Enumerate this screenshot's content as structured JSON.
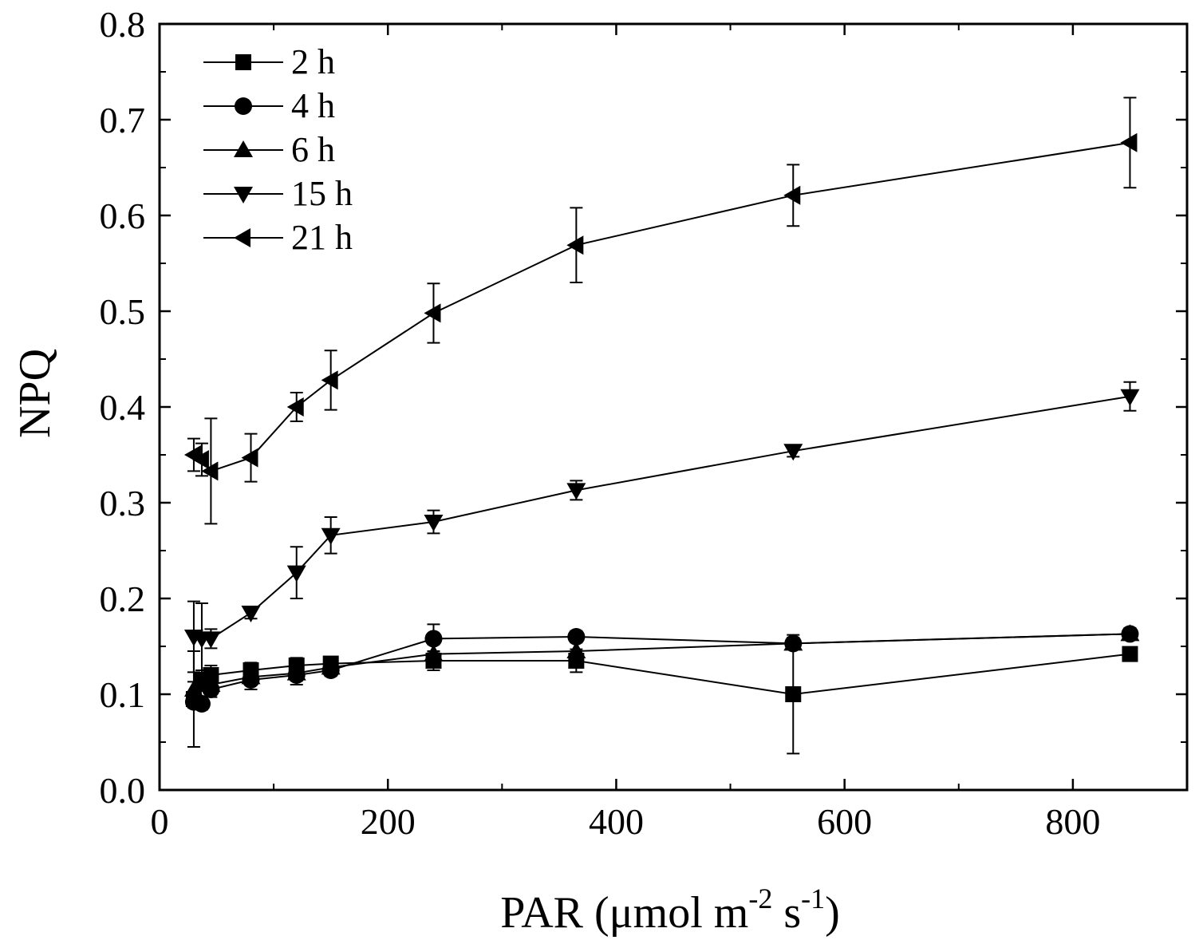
{
  "chart_data": {
    "type": "line",
    "title": "",
    "xlabel": "PAR (μmol m",
    "xlabel_sup1": "-2",
    "xlabel_mid": " s",
    "xlabel_sup2": "-1",
    "xlabel_end": ")",
    "ylabel": "NPQ",
    "xlim": [
      0,
      900
    ],
    "ylim": [
      0,
      0.8
    ],
    "xticks": [
      0,
      200,
      400,
      600,
      800
    ],
    "xtick_labels": [
      "0",
      "200",
      "400",
      "600",
      "800"
    ],
    "yticks": [
      0,
      0.1,
      0.2,
      0.3,
      0.4,
      0.5,
      0.6,
      0.7,
      0.8
    ],
    "ytick_labels": [
      "0.0",
      "0.1",
      "0.2",
      "0.3",
      "0.4",
      "0.5",
      "0.6",
      "0.7",
      "0.8"
    ],
    "legend_position": "top-left",
    "x": [
      30,
      37,
      45,
      80,
      120,
      150,
      240,
      365,
      555,
      850
    ],
    "series": [
      {
        "name": "2 h",
        "marker": "square",
        "values": [
          0.095,
          0.115,
          0.12,
          0.125,
          0.13,
          0.132,
          0.135,
          0.135,
          0.1,
          0.142
        ],
        "errors": [
          0.05,
          0.01,
          0.01,
          0.008,
          0.008,
          0.006,
          0.01,
          0.012,
          0.062,
          0.006
        ]
      },
      {
        "name": "4 h",
        "marker": "circle",
        "values": [
          0.092,
          0.09,
          0.105,
          0.115,
          0.12,
          0.125,
          0.158,
          0.16,
          0.153,
          0.163
        ],
        "errors": [
          0.006,
          0.006,
          0.008,
          0.01,
          0.01,
          0.006,
          0.015,
          0.006,
          0.006,
          0.006
        ]
      },
      {
        "name": "6 h",
        "marker": "triangle-up",
        "values": [
          0.105,
          0.112,
          0.11,
          0.118,
          0.122,
          0.128,
          0.142,
          0.145,
          0.153,
          0.163
        ],
        "errors": [
          0.008,
          0.008,
          0.008,
          0.008,
          0.008,
          0.008,
          0.01,
          0.01,
          0.006,
          0.006
        ]
      },
      {
        "name": "15 h",
        "marker": "triangle-down",
        "values": [
          0.16,
          0.158,
          0.158,
          0.185,
          0.227,
          0.266,
          0.28,
          0.313,
          0.354,
          0.411
        ],
        "errors": [
          0.037,
          0.037,
          0.01,
          0.006,
          0.027,
          0.019,
          0.012,
          0.01,
          0.006,
          0.015
        ]
      },
      {
        "name": "21 h",
        "marker": "triangle-left",
        "values": [
          0.35,
          0.345,
          0.333,
          0.347,
          0.4,
          0.428,
          0.498,
          0.569,
          0.621,
          0.676
        ],
        "errors": [
          0.017,
          0.017,
          0.055,
          0.025,
          0.015,
          0.031,
          0.031,
          0.039,
          0.032,
          0.047
        ]
      }
    ]
  }
}
